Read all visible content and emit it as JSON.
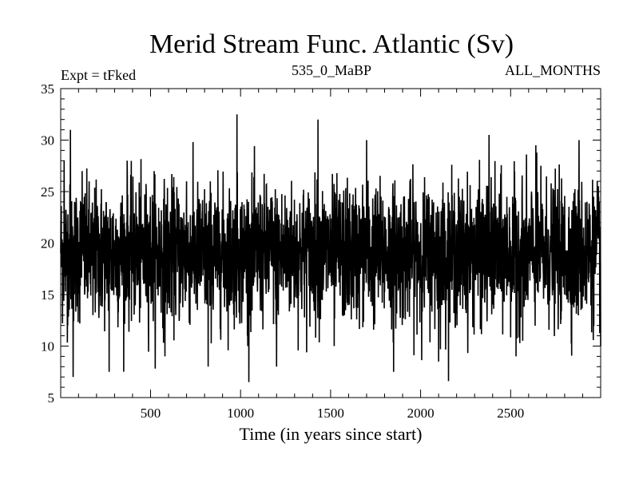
{
  "chart_data": {
    "type": "line",
    "title": "Merid Stream Func. Atlantic (Sv)",
    "annotations": {
      "left": "Expt = tFked",
      "center": "535_0_MaBP",
      "right": "ALL_MONTHS"
    },
    "xlabel": "Time (in years since start)",
    "ylabel": "",
    "xlim": [
      1,
      3000
    ],
    "ylim": [
      5,
      35
    ],
    "xticks": [
      "500",
      "1000",
      "1500",
      "2000",
      "2500"
    ],
    "xtick_values": [
      500,
      1000,
      1500,
      2000,
      2500
    ],
    "yticks": [
      "5",
      "10",
      "15",
      "20",
      "25",
      "30",
      "35"
    ],
    "ytick_values": [
      5,
      10,
      15,
      20,
      25,
      30,
      35
    ],
    "series": [
      {
        "color": "#000000",
        "description_points": [
          [
            1,
            19
          ],
          [
            20,
            28
          ],
          [
            40,
            12
          ],
          [
            55,
            31
          ],
          [
            70,
            7
          ],
          [
            120,
            27
          ],
          [
            180,
            13
          ],
          [
            270,
            7.5
          ],
          [
            370,
            28
          ],
          [
            520,
            27
          ],
          [
            580,
            9
          ],
          [
            700,
            26
          ],
          [
            820,
            8
          ],
          [
            980,
            32.5
          ],
          [
            1040,
            10
          ],
          [
            1200,
            8
          ],
          [
            1430,
            32
          ],
          [
            1520,
            10
          ],
          [
            1700,
            30
          ],
          [
            1850,
            7.5
          ],
          [
            2100,
            8.5
          ],
          [
            2380,
            30.5
          ],
          [
            2530,
            9
          ],
          [
            2640,
            29.5
          ],
          [
            2880,
            30
          ],
          [
            3000,
            10
          ]
        ],
        "mean": 19,
        "std": 3.3
      }
    ]
  }
}
